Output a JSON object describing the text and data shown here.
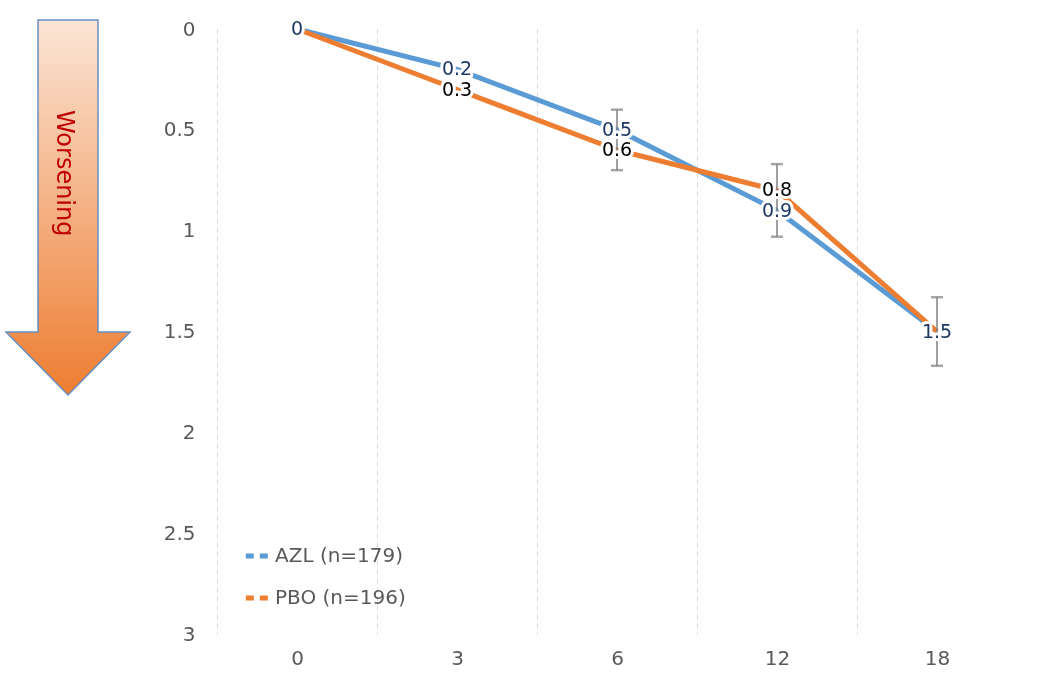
{
  "chart_data": {
    "type": "line",
    "categories": [
      "0",
      "3",
      "6",
      "12",
      "18"
    ],
    "series": [
      {
        "name": "AZL (n=179)",
        "color": "#5b9bd5",
        "values": [
          0,
          0.2,
          0.5,
          0.9,
          1.5
        ],
        "value_labels": [
          "0",
          "0.2",
          "0.5",
          "0.9",
          "1.5"
        ],
        "errors": [
          null,
          null,
          [
            0.4,
            0.7
          ],
          [
            0.67,
            1.03
          ],
          [
            1.33,
            1.67
          ]
        ]
      },
      {
        "name": "PBO (n=196)",
        "color": "#ed7d31",
        "values": [
          0,
          0.3,
          0.6,
          0.8,
          1.5
        ],
        "value_labels": [
          null,
          "0.3",
          "0.6",
          "0.8",
          null
        ]
      }
    ],
    "ylim": [
      3,
      0
    ],
    "yticks": [
      0,
      0.5,
      1,
      1.5,
      2,
      2.5,
      3
    ],
    "grid": "x",
    "legend": "bottom left",
    "marker": "none",
    "line_style": "solid",
    "annotations": [
      "Worsening"
    ]
  }
}
